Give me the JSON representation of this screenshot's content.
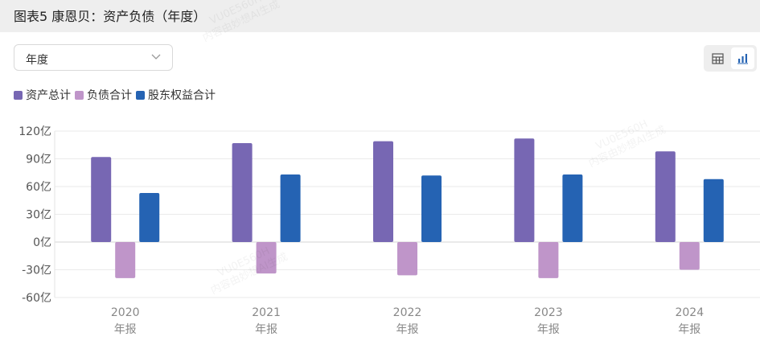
{
  "header": {
    "title": "图表5 康恩贝：资产负债（年度）"
  },
  "controls": {
    "period_select": {
      "value": "年度"
    },
    "view_toggle": {
      "table_icon": "table-icon",
      "chart_icon": "bar-chart-icon",
      "active": "chart"
    }
  },
  "watermark": {
    "line1": "VU0E560H",
    "line2": "内容由妙想AI生成"
  },
  "chart_data": {
    "type": "bar",
    "categories": [
      "2020",
      "2021",
      "2022",
      "2023",
      "2024"
    ],
    "category_sublabel": "年报",
    "series": [
      {
        "name": "资产总计",
        "color": "#7767b3",
        "values": [
          92,
          107,
          109,
          112,
          98
        ]
      },
      {
        "name": "负债合计",
        "color": "#bf95c9",
        "values": [
          -39,
          -34,
          -36,
          -39,
          -30
        ]
      },
      {
        "name": "股东权益合计",
        "color": "#2563b3",
        "values": [
          53,
          73,
          72,
          73,
          68
        ]
      }
    ],
    "ylim": [
      -60,
      120
    ],
    "yticks": [
      120,
      90,
      60,
      30,
      0,
      -30,
      -60
    ],
    "ytick_labels": [
      "120亿",
      "90亿",
      "60亿",
      "30亿",
      "0亿",
      "-30亿",
      "-60亿"
    ],
    "grid": true,
    "legend": "top-left"
  }
}
